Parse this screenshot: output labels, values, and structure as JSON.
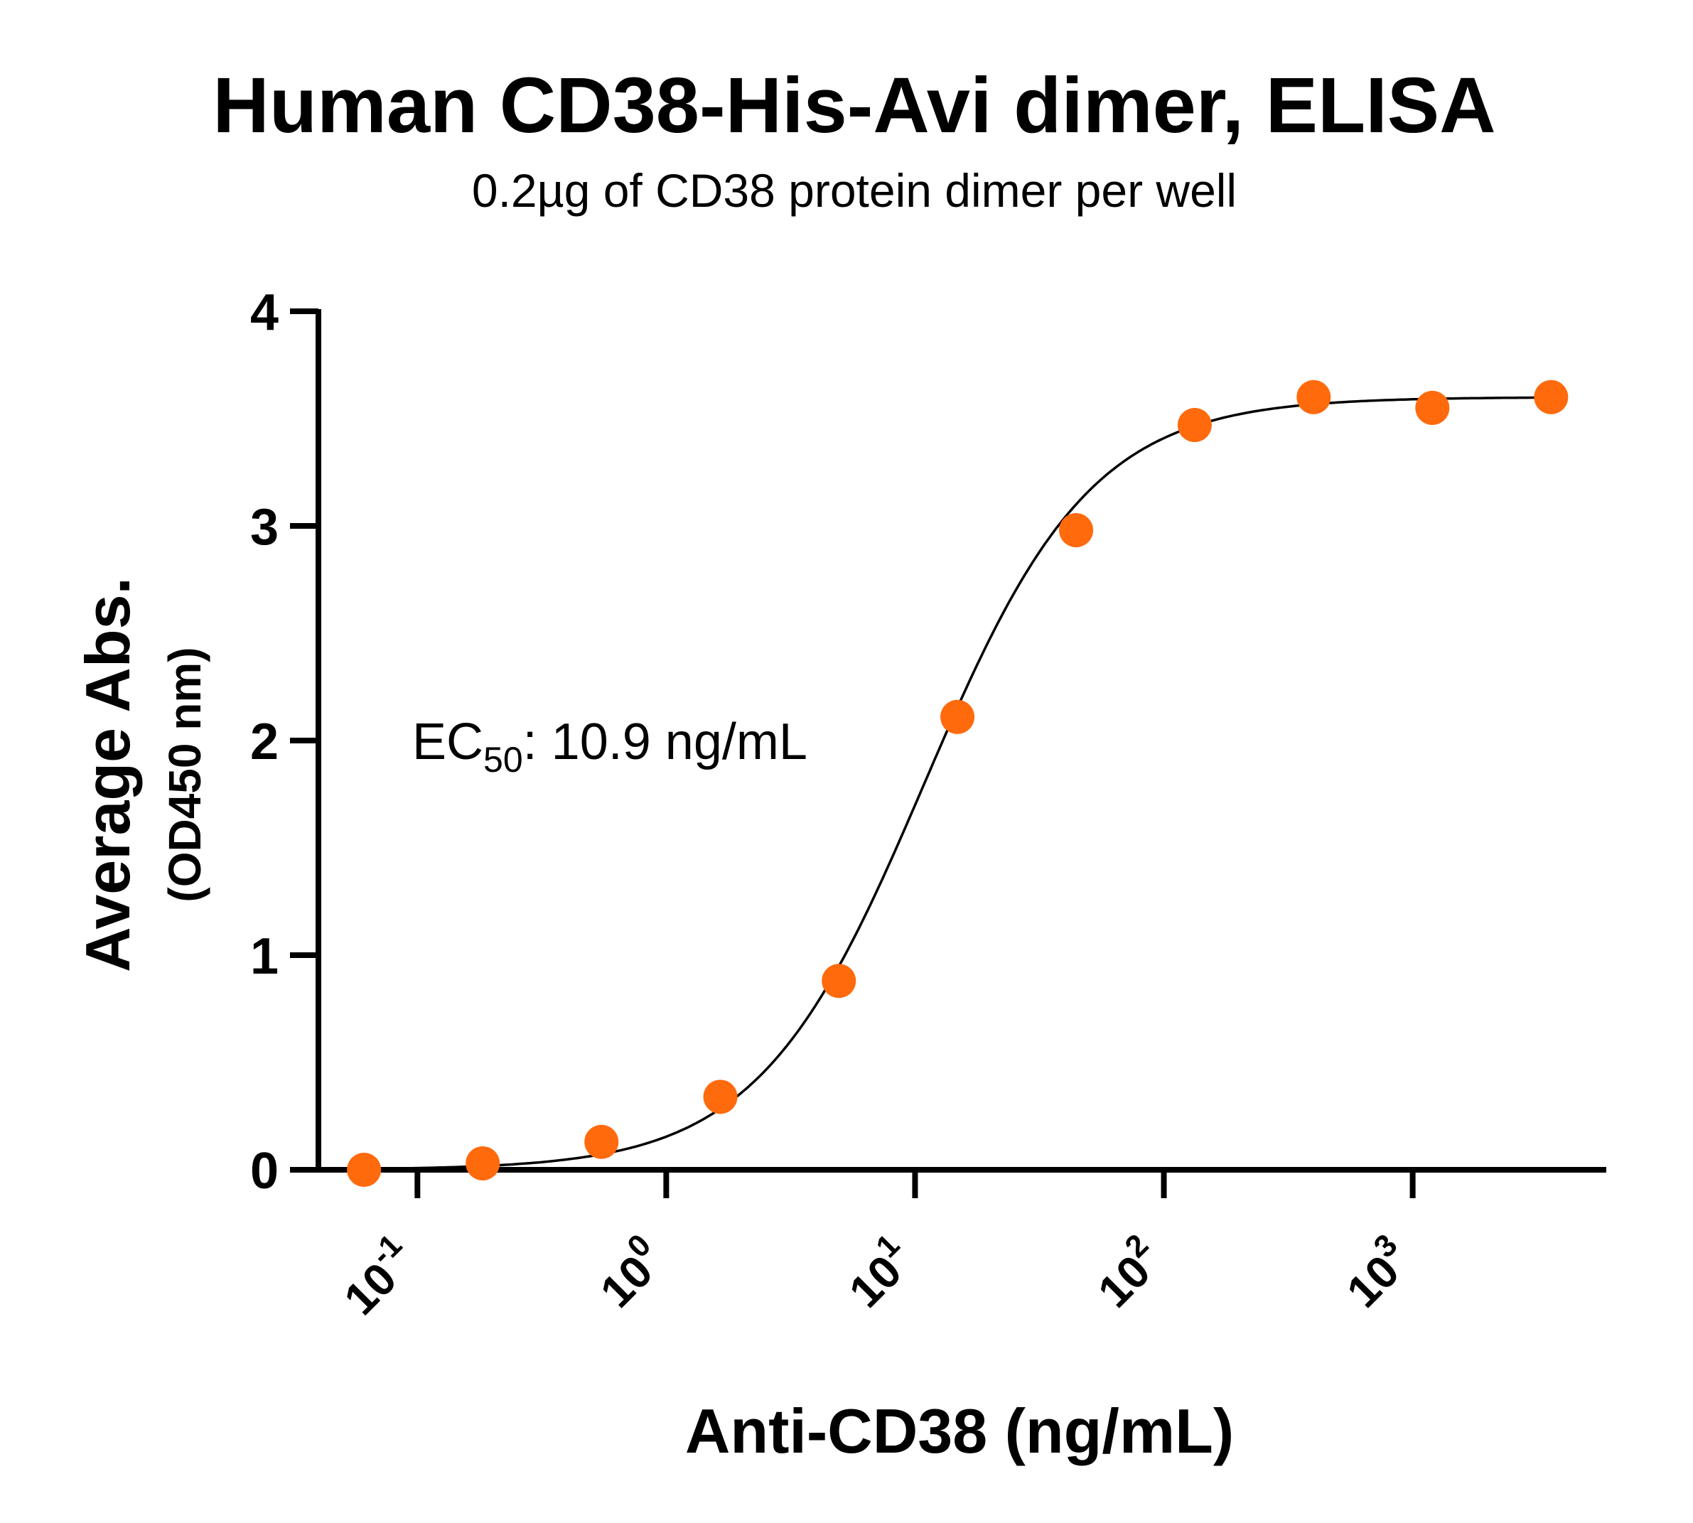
{
  "chart_data": {
    "type": "scatter",
    "title": "Human CD38-His-Avi dimer, ELISA",
    "subtitle": "0.2µg of CD38 protein dimer per well",
    "xlabel": "Anti-CD38 (ng/mL)",
    "ylabel": "Average Abs.",
    "ylabel_sub": "(OD450 nm)",
    "xscale": "log",
    "xlim": [
      0.04,
      6000
    ],
    "ylim": [
      0,
      4
    ],
    "y_ticks": [
      "0",
      "1",
      "2",
      "3",
      "4"
    ],
    "x_ticks": [
      {
        "base": "10",
        "exp": "-1",
        "value": 0.1
      },
      {
        "base": "10",
        "exp": "0",
        "value": 1
      },
      {
        "base": "10",
        "exp": "1",
        "value": 10
      },
      {
        "base": "10",
        "exp": "2",
        "value": 100
      },
      {
        "base": "10",
        "exp": "3",
        "value": 1000
      }
    ],
    "grid": false,
    "series": [
      {
        "color": "#ff6a0d",
        "x": [
          0.061,
          0.183,
          0.549,
          1.65,
          4.94,
          14.8,
          44.4,
          133,
          400,
          1200,
          3600
        ],
        "y": [
          0.0,
          0.03,
          0.13,
          0.34,
          0.88,
          2.11,
          2.98,
          3.47,
          3.6,
          3.55,
          3.6
        ]
      }
    ],
    "fit_curve": {
      "color": "#000000",
      "bottom": 0.0,
      "top": 3.6,
      "ec50": 10.9,
      "hill": 1.3
    },
    "annotation": {
      "prefix": "EC",
      "subscript": "50",
      "text": ": 10.9 ng/mL"
    }
  }
}
